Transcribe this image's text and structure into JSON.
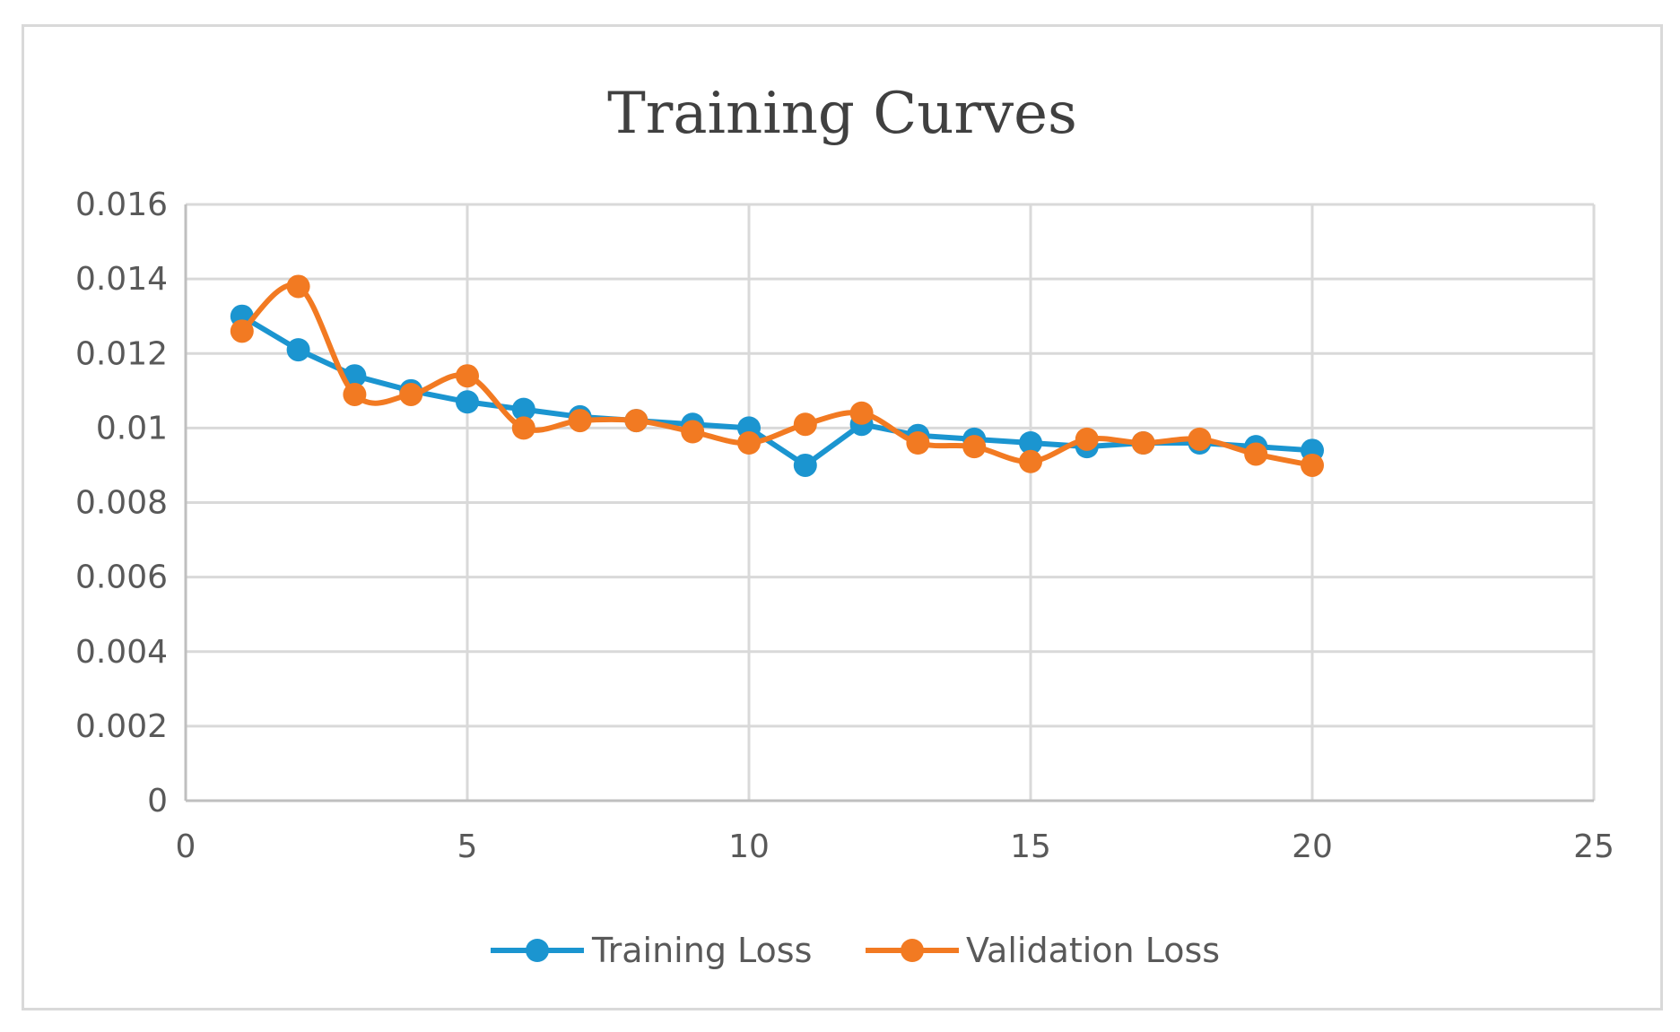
{
  "chart_data": {
    "type": "line",
    "title": "Training Curves",
    "xlabel": "",
    "ylabel": "",
    "xlim": [
      0,
      25
    ],
    "ylim": [
      0,
      0.016
    ],
    "xticks": [
      0,
      5,
      10,
      15,
      20,
      25
    ],
    "yticks": [
      0,
      0.002,
      0.004,
      0.006,
      0.008,
      0.01,
      0.012,
      0.014,
      0.016
    ],
    "xtick_labels": [
      "0",
      "5",
      "10",
      "15",
      "20",
      "25"
    ],
    "ytick_labels": [
      "0",
      "0.002",
      "0.004",
      "0.006",
      "0.008",
      "0.01",
      "0.012",
      "0.014",
      "0.016"
    ],
    "grid": true,
    "legend_position": "bottom",
    "x": [
      1,
      2,
      3,
      4,
      5,
      6,
      7,
      8,
      9,
      10,
      11,
      12,
      13,
      14,
      15,
      16,
      17,
      18,
      19,
      20
    ],
    "series": [
      {
        "name": "Training Loss",
        "color": "#1b95d0",
        "smooth": false,
        "values": [
          0.013,
          0.0121,
          0.0114,
          0.011,
          0.0107,
          0.0105,
          0.0103,
          0.0102,
          0.0101,
          0.01,
          0.009,
          0.0101,
          0.0098,
          0.0097,
          0.0096,
          0.0095,
          0.0096,
          0.0096,
          0.0095,
          0.0094
        ]
      },
      {
        "name": "Validation Loss",
        "color": "#f27a22",
        "smooth": true,
        "values": [
          0.0126,
          0.0138,
          0.0109,
          0.0109,
          0.0114,
          0.01,
          0.0102,
          0.0102,
          0.0099,
          0.0096,
          0.0101,
          0.0104,
          0.0096,
          0.0095,
          0.0091,
          0.0097,
          0.0096,
          0.0097,
          0.0093,
          0.009
        ]
      }
    ]
  }
}
